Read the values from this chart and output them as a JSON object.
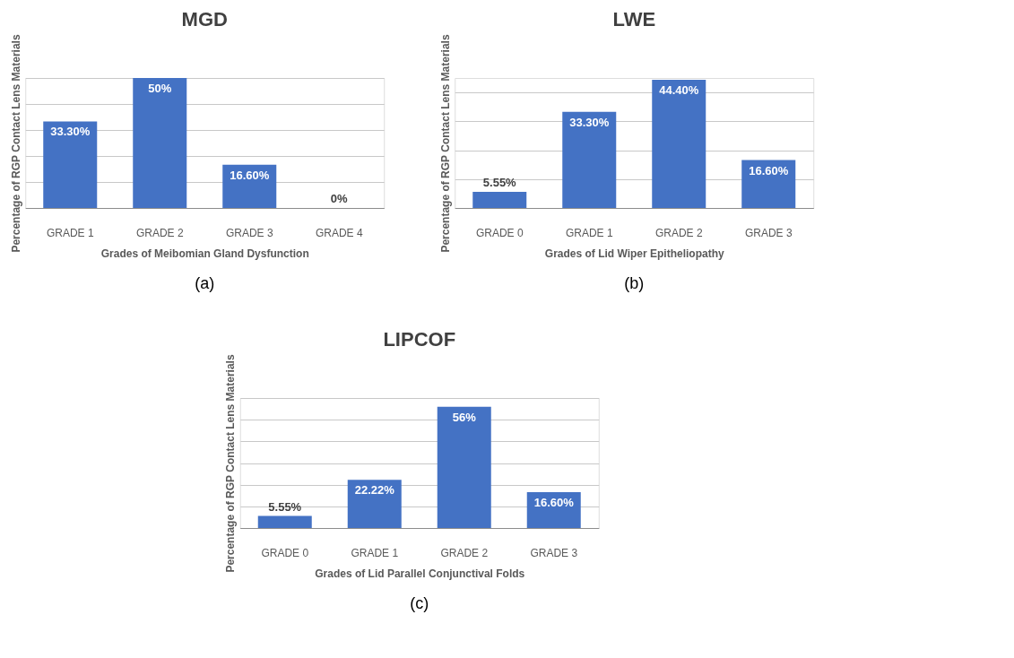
{
  "chart_data": [
    {
      "type": "bar",
      "title": "MGD",
      "xlabel": "Grades of Meibomian Gland Dysfunction",
      "ylabel": "Percentage of RGP Contact Lens Materials",
      "categories": [
        "GRADE 1",
        "GRADE 2",
        "GRADE 3",
        "GRADE 4"
      ],
      "values": [
        33.3,
        50,
        16.6,
        0
      ],
      "value_labels": [
        "33.30%",
        "50%",
        "16.60%",
        "0%"
      ],
      "color": "#4472c4",
      "grid": "y",
      "tick_labels": "x",
      "annotations": [
        "(a)"
      ]
    },
    {
      "type": "bar",
      "title": "LWE",
      "xlabel": "Grades of Lid Wiper Epitheliopathy",
      "ylabel": "Percentage of RGP Contact Lens Materials",
      "categories": [
        "GRADE 0",
        "GRADE 1",
        "GRADE 2",
        "GRADE 3"
      ],
      "values": [
        5.55,
        33.3,
        44.4,
        16.6
      ],
      "value_labels": [
        "5.55%",
        "33.30%",
        "44.40%",
        "16.60%"
      ],
      "color": "#4472c4",
      "grid": "y",
      "tick_labels": "x",
      "annotations": [
        "(b)"
      ]
    },
    {
      "type": "bar",
      "title": "LIPCOF",
      "xlabel": "Grades of Lid Parallel Conjunctival Folds",
      "ylabel": "Percentage of RGP Contact Lens Materials",
      "categories": [
        "GRADE 0",
        "GRADE 1",
        "GRADE 2",
        "GRADE 3"
      ],
      "values": [
        5.55,
        22.22,
        56,
        16.6
      ],
      "value_labels": [
        "5.55%",
        "22.22%",
        "56%",
        "16.60%"
      ],
      "color": "#4472c4",
      "grid": "y",
      "tick_labels": "x",
      "annotations": [
        "(c)"
      ]
    }
  ]
}
